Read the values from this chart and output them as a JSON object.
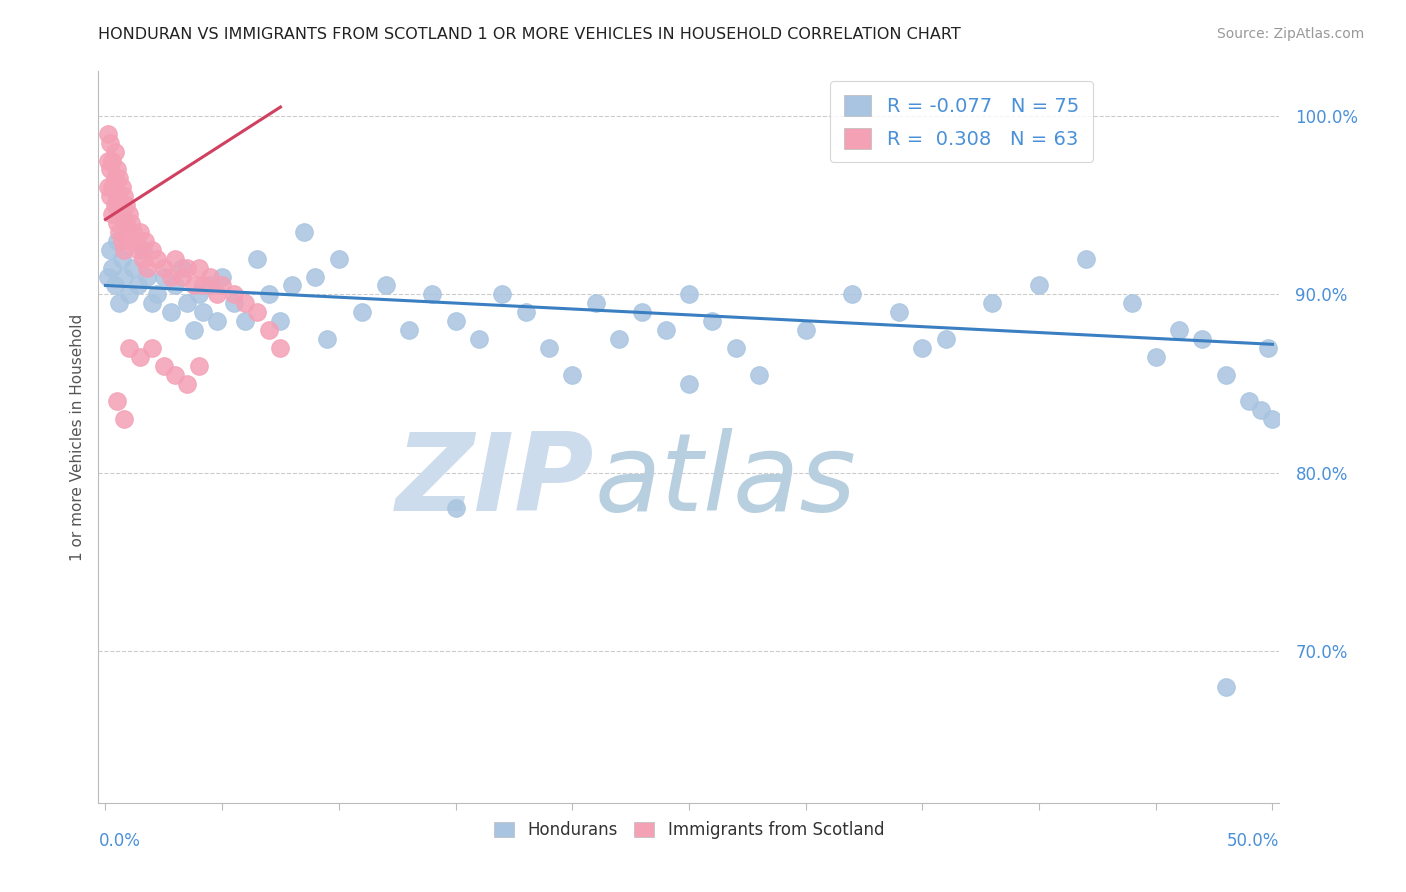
{
  "title": "HONDURAN VS IMMIGRANTS FROM SCOTLAND 1 OR MORE VEHICLES IN HOUSEHOLD CORRELATION CHART",
  "source": "Source: ZipAtlas.com",
  "ylabel": "1 or more Vehicles in Household",
  "ylim": [
    0.615,
    1.025
  ],
  "xlim": [
    -0.003,
    0.503
  ],
  "yticks": [
    0.7,
    0.8,
    0.9,
    1.0
  ],
  "ytick_labels": [
    "70.0%",
    "80.0%",
    "90.0%",
    "100.0%"
  ],
  "legend_R1": "-0.077",
  "legend_N1": "75",
  "legend_R2": "0.308",
  "legend_N2": "63",
  "blue_color": "#a8c4e0",
  "blue_line_color": "#3a7fc1",
  "pink_color": "#f4a0b5",
  "pink_line_color": "#d04060",
  "watermark_color": "#cddcec",
  "blue_trend_x0": 0.0,
  "blue_trend_y0": 0.905,
  "blue_trend_x1": 0.5,
  "blue_trend_y1": 0.872,
  "pink_trend_x0": 0.0,
  "pink_trend_y0": 0.942,
  "pink_trend_x1": 0.075,
  "pink_trend_y1": 1.005,
  "blue_dots_x": [
    0.001,
    0.002,
    0.003,
    0.004,
    0.005,
    0.006,
    0.007,
    0.008,
    0.009,
    0.01,
    0.012,
    0.014,
    0.016,
    0.018,
    0.02,
    0.022,
    0.025,
    0.028,
    0.03,
    0.033,
    0.035,
    0.038,
    0.04,
    0.042,
    0.045,
    0.048,
    0.05,
    0.055,
    0.06,
    0.065,
    0.07,
    0.075,
    0.08,
    0.085,
    0.09,
    0.095,
    0.1,
    0.11,
    0.12,
    0.13,
    0.14,
    0.15,
    0.16,
    0.17,
    0.18,
    0.19,
    0.2,
    0.21,
    0.22,
    0.23,
    0.24,
    0.25,
    0.26,
    0.27,
    0.28,
    0.3,
    0.32,
    0.34,
    0.36,
    0.38,
    0.4,
    0.42,
    0.44,
    0.46,
    0.47,
    0.48,
    0.49,
    0.495,
    0.498,
    0.5,
    0.15,
    0.25,
    0.35,
    0.45,
    0.48
  ],
  "blue_dots_y": [
    0.91,
    0.925,
    0.915,
    0.905,
    0.93,
    0.895,
    0.92,
    0.91,
    0.94,
    0.9,
    0.915,
    0.905,
    0.925,
    0.91,
    0.895,
    0.9,
    0.91,
    0.89,
    0.905,
    0.915,
    0.895,
    0.88,
    0.9,
    0.89,
    0.905,
    0.885,
    0.91,
    0.895,
    0.885,
    0.92,
    0.9,
    0.885,
    0.905,
    0.935,
    0.91,
    0.875,
    0.92,
    0.89,
    0.905,
    0.88,
    0.9,
    0.885,
    0.875,
    0.9,
    0.89,
    0.87,
    0.855,
    0.895,
    0.875,
    0.89,
    0.88,
    0.9,
    0.885,
    0.87,
    0.855,
    0.88,
    0.9,
    0.89,
    0.875,
    0.895,
    0.905,
    0.92,
    0.895,
    0.88,
    0.875,
    0.855,
    0.84,
    0.835,
    0.87,
    0.83,
    0.78,
    0.85,
    0.87,
    0.865,
    0.68
  ],
  "pink_dots_x": [
    0.001,
    0.001,
    0.001,
    0.002,
    0.002,
    0.002,
    0.003,
    0.003,
    0.003,
    0.004,
    0.004,
    0.004,
    0.005,
    0.005,
    0.005,
    0.006,
    0.006,
    0.006,
    0.007,
    0.007,
    0.007,
    0.008,
    0.008,
    0.008,
    0.009,
    0.009,
    0.01,
    0.01,
    0.011,
    0.012,
    0.013,
    0.014,
    0.015,
    0.016,
    0.017,
    0.018,
    0.02,
    0.022,
    0.025,
    0.028,
    0.03,
    0.033,
    0.035,
    0.038,
    0.04,
    0.042,
    0.045,
    0.048,
    0.05,
    0.055,
    0.06,
    0.065,
    0.07,
    0.075,
    0.04,
    0.02,
    0.01,
    0.015,
    0.025,
    0.03,
    0.035,
    0.005,
    0.008
  ],
  "pink_dots_y": [
    0.99,
    0.975,
    0.96,
    0.985,
    0.97,
    0.955,
    0.975,
    0.96,
    0.945,
    0.98,
    0.965,
    0.95,
    0.97,
    0.955,
    0.94,
    0.965,
    0.95,
    0.935,
    0.96,
    0.945,
    0.93,
    0.955,
    0.94,
    0.925,
    0.95,
    0.935,
    0.945,
    0.93,
    0.94,
    0.935,
    0.93,
    0.925,
    0.935,
    0.92,
    0.93,
    0.915,
    0.925,
    0.92,
    0.915,
    0.91,
    0.92,
    0.91,
    0.915,
    0.905,
    0.915,
    0.905,
    0.91,
    0.9,
    0.905,
    0.9,
    0.895,
    0.89,
    0.88,
    0.87,
    0.86,
    0.87,
    0.87,
    0.865,
    0.86,
    0.855,
    0.85,
    0.84,
    0.83
  ]
}
